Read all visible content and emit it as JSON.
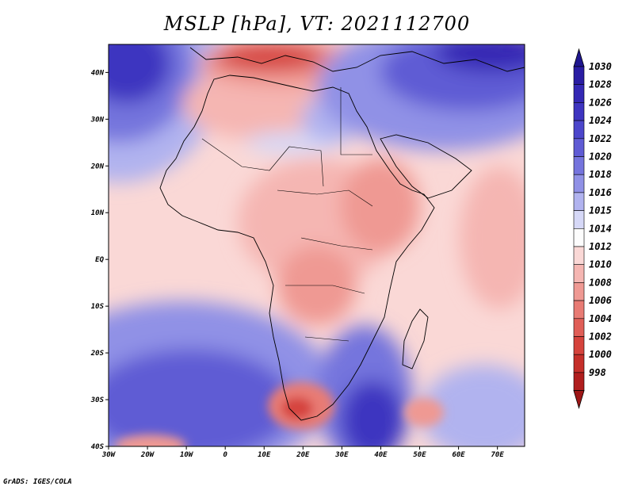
{
  "title": "MSLP [hPa], VT: 2021112700",
  "credit": "GrADS: IGES/COLA",
  "map": {
    "lon_range": [
      -30,
      77
    ],
    "lat_range": [
      -40,
      46
    ],
    "lat_ticks": [
      {
        "value": 40,
        "label": "40N"
      },
      {
        "value": 30,
        "label": "30N"
      },
      {
        "value": 20,
        "label": "20N"
      },
      {
        "value": 10,
        "label": "10N"
      },
      {
        "value": 0,
        "label": "EQ"
      },
      {
        "value": -10,
        "label": "10S"
      },
      {
        "value": -20,
        "label": "20S"
      },
      {
        "value": -30,
        "label": "30S"
      },
      {
        "value": -40,
        "label": "40S"
      }
    ],
    "lon_ticks": [
      {
        "value": -30,
        "label": "30W"
      },
      {
        "value": -20,
        "label": "20W"
      },
      {
        "value": -10,
        "label": "10W"
      },
      {
        "value": 0,
        "label": "0"
      },
      {
        "value": 10,
        "label": "10E"
      },
      {
        "value": 20,
        "label": "20E"
      },
      {
        "value": 30,
        "label": "30E"
      },
      {
        "value": 40,
        "label": "40E"
      },
      {
        "value": 50,
        "label": "50E"
      },
      {
        "value": 60,
        "label": "60E"
      },
      {
        "value": 70,
        "label": "70E"
      }
    ]
  },
  "colorbar": {
    "levels": [
      {
        "label": "1030",
        "color": "#2a1da3"
      },
      {
        "label": "1028",
        "color": "#3428b4"
      },
      {
        "label": "1026",
        "color": "#3e34c0"
      },
      {
        "label": "1024",
        "color": "#4c46cb"
      },
      {
        "label": "1022",
        "color": "#5f5bd4"
      },
      {
        "label": "1020",
        "color": "#7574dd"
      },
      {
        "label": "1018",
        "color": "#9091e6"
      },
      {
        "label": "1016",
        "color": "#b1b3ef"
      },
      {
        "label": "1015",
        "color": "#d6d8f7"
      },
      {
        "label": "1014",
        "color": "#fdfdfd"
      },
      {
        "label": "1012",
        "color": "#fad8d6"
      },
      {
        "label": "1010",
        "color": "#f5b6b2"
      },
      {
        "label": "1008",
        "color": "#ef9993"
      },
      {
        "label": "1006",
        "color": "#e87b74"
      },
      {
        "label": "1004",
        "color": "#e05e57"
      },
      {
        "label": "1002",
        "color": "#d5433c"
      },
      {
        "label": "1000",
        "color": "#c52f2a"
      },
      {
        "label": "998",
        "color": "#b01e1e"
      }
    ],
    "top_color": "#1f168f",
    "bottom_color": "#9e1616"
  }
}
